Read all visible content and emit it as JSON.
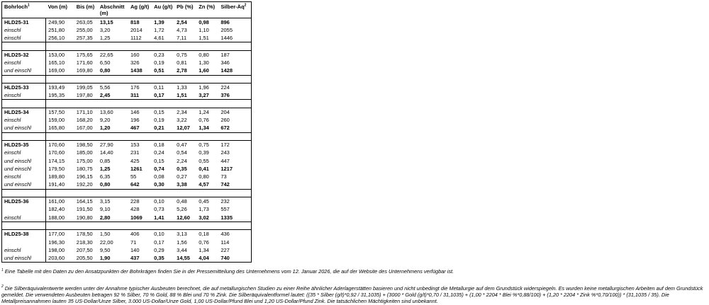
{
  "table": {
    "headers": [
      {
        "label": "Bohrloch",
        "sup": "1"
      },
      {
        "label": "Von (m)"
      },
      {
        "label": "Bis (m)"
      },
      {
        "label": "Abschnitt",
        "sub": "(m)"
      },
      {
        "label": "Ag (g/t)"
      },
      {
        "label": "Au (g/t)"
      },
      {
        "label": "Pb (%)"
      },
      {
        "label": "Zn (%)"
      },
      {
        "label": "Silber-Äq",
        "sup": "2"
      }
    ],
    "groups": [
      {
        "rows": [
          {
            "label": "HLD25-31",
            "type": "hole",
            "highlight": true,
            "values": [
              "249,90",
              "263,05",
              "13,15",
              "818",
              "1,39",
              "2,54",
              "0,98",
              "896"
            ]
          },
          {
            "label": "einschl",
            "type": "einschl",
            "highlight": false,
            "values": [
              "251,80",
              "255,00",
              "3,20",
              "2014",
              "1,72",
              "4,73",
              "1,10",
              "2055"
            ]
          },
          {
            "label": "einschl",
            "type": "einschl",
            "highlight": false,
            "values": [
              "256,10",
              "257,35",
              "1,25",
              "1112",
              "4,61",
              "7,11",
              "1,51",
              "1446"
            ]
          }
        ]
      },
      {
        "rows": [
          {
            "label": "HLD25-32",
            "type": "hole",
            "highlight": false,
            "values": [
              "153,00",
              "175,65",
              "22,65",
              "160",
              "0,23",
              "0,75",
              "0,80",
              "187"
            ]
          },
          {
            "label": "einschl",
            "type": "einschl",
            "highlight": false,
            "values": [
              "165,10",
              "171,60",
              "6,50",
              "326",
              "0,19",
              "0,81",
              "1,30",
              "346"
            ]
          },
          {
            "label": "und einschl",
            "type": "einschl",
            "highlight": true,
            "values": [
              "169,00",
              "169,80",
              "0,80",
              "1438",
              "0,51",
              "2,78",
              "1,60",
              "1428"
            ]
          }
        ]
      },
      {
        "rows": [
          {
            "label": "HLD25-33",
            "type": "hole",
            "highlight": false,
            "values": [
              "193,49",
              "199,05",
              "5,56",
              "176",
              "0,11",
              "1,33",
              "1,96",
              "224"
            ]
          },
          {
            "label": "einschl",
            "type": "einschl",
            "highlight": true,
            "values": [
              "195,35",
              "197,80",
              "2,45",
              "311",
              "0,17",
              "1,51",
              "3,27",
              "376"
            ]
          }
        ]
      },
      {
        "rows": [
          {
            "label": "HLD25-34",
            "type": "hole",
            "highlight": false,
            "values": [
              "157,50",
              "171,10",
              "13,60",
              "146",
              "0,15",
              "2,34",
              "1,24",
              "204"
            ]
          },
          {
            "label": "einschl",
            "type": "einschl",
            "highlight": false,
            "values": [
              "159,00",
              "168,20",
              "9,20",
              "196",
              "0,19",
              "3,22",
              "0,76",
              "260"
            ]
          },
          {
            "label": "und einschl",
            "type": "einschl",
            "highlight": true,
            "values": [
              "165,80",
              "167,00",
              "1,20",
              "467",
              "0,21",
              "12,07",
              "1,34",
              "672"
            ]
          }
        ]
      },
      {
        "rows": [
          {
            "label": "HLD25-35",
            "type": "hole",
            "highlight": false,
            "values": [
              "170,60",
              "198,50",
              "27,90",
              "153",
              "0,18",
              "0,47",
              "0,75",
              "172"
            ]
          },
          {
            "label": "einschl",
            "type": "einschl",
            "highlight": false,
            "values": [
              "170,60",
              "185,00",
              "14,40",
              "231",
              "0,24",
              "0,54",
              "0,39",
              "243"
            ]
          },
          {
            "label": "und einschl",
            "type": "einschl",
            "highlight": false,
            "values": [
              "174,15",
              "175,00",
              "0,85",
              "425",
              "0,15",
              "2,24",
              "0,55",
              "447"
            ]
          },
          {
            "label": "und einschl",
            "type": "einschl",
            "highlight": true,
            "values": [
              "179,50",
              "180,75",
              "1,25",
              "1261",
              "0,74",
              "0,35",
              "0,41",
              "1217"
            ]
          },
          {
            "label": "einschl",
            "type": "einschl",
            "highlight": false,
            "values": [
              "189,80",
              "196,15",
              "6,35",
              "55",
              "0,08",
              "0,27",
              "0,80",
              "73"
            ]
          },
          {
            "label": "und einschl",
            "type": "einschl",
            "highlight": true,
            "values": [
              "191,40",
              "192,20",
              "0,80",
              "642",
              "0,30",
              "3,38",
              "4,57",
              "742"
            ]
          }
        ]
      },
      {
        "rows": [
          {
            "label": "HLD25-36",
            "type": "hole",
            "highlight": false,
            "values": [
              "161,00",
              "164,15",
              "3,15",
              "228",
              "0,10",
              "0,48",
              "0,45",
              "232"
            ]
          },
          {
            "label": "",
            "type": "blank",
            "highlight": false,
            "values": [
              "182,40",
              "191,50",
              "9,10",
              "428",
              "0,73",
              "5,26",
              "1,73",
              "557"
            ]
          },
          {
            "label": "einschl",
            "type": "einschl",
            "highlight": true,
            "values": [
              "188,00",
              "190,80",
              "2,80",
              "1069",
              "1,41",
              "12,60",
              "3,02",
              "1335"
            ]
          }
        ]
      },
      {
        "rows": [
          {
            "label": "HLD25-38",
            "type": "hole",
            "highlight": false,
            "values": [
              "177,00",
              "178,50",
              "1,50",
              "406",
              "0,10",
              "3,13",
              "0,18",
              "436"
            ]
          },
          {
            "label": "",
            "type": "blank",
            "highlight": false,
            "values": [
              "196,30",
              "218,30",
              "22,00",
              "71",
              "0,17",
              "1,56",
              "0,76",
              "114"
            ]
          },
          {
            "label": "einschl",
            "type": "einschl",
            "highlight": false,
            "values": [
              "198,00",
              "207,50",
              "9,50",
              "140",
              "0,29",
              "3,44",
              "1,34",
              "227"
            ]
          },
          {
            "label": "und einschl",
            "type": "einschl",
            "highlight": true,
            "values": [
              "203,60",
              "205,50",
              "1,90",
              "437",
              "0,35",
              "14,55",
              "4,04",
              "740"
            ]
          }
        ]
      }
    ]
  },
  "footnotes": {
    "fn1": {
      "marker": "1",
      "text": "Eine Tabelle mit den Daten zu den Ansatzpunkten der Bohrkrägen finden Sie in der Pressemitteilung des Unternehmens vom 12. Januar 2026, die auf der Website des Unternehmens verfügbar ist."
    },
    "fn2": {
      "marker": "2",
      "text": "Die Silberäquivalentwerte werden unter der Annahme typischer Ausbeuten berechnet, die auf metallurgischen Studien zu einer Reihe ähnlicher Aderlagerstätten basieren und nicht unbedingt die Metallurgie auf dem Grundstück widerspiegeln. Es wurden keine metallurgischen Arbeiten auf dem Grundstück gemeldet. Die verwendeten Ausbeuten betragen 92 % Silber, 70 % Gold, 88 % Blei und 70 % Zink. Die Silberäquivalentformel lautet: ((35 * Silber (g/t)*0,92 / 31,1035) + (3000 * Gold (g/t)*0,70 / 31,1035) + (1,00 * 2204 * Blei %*0,88/100) + (1,20 * 2204 * Zink %*0,70/100)) * (31,1035 / 35). Die Metallpreisannahmen lauten 35 US-Dollar/Unze Silber, 3.000 US-Dollar/Unze Gold, 1,00 US-Dollar/Pfund Blei und 1,20 US-Dollar/Pfund Zink. Die tatsächlichen Mächtigkeiten sind unbekannt."
    }
  }
}
